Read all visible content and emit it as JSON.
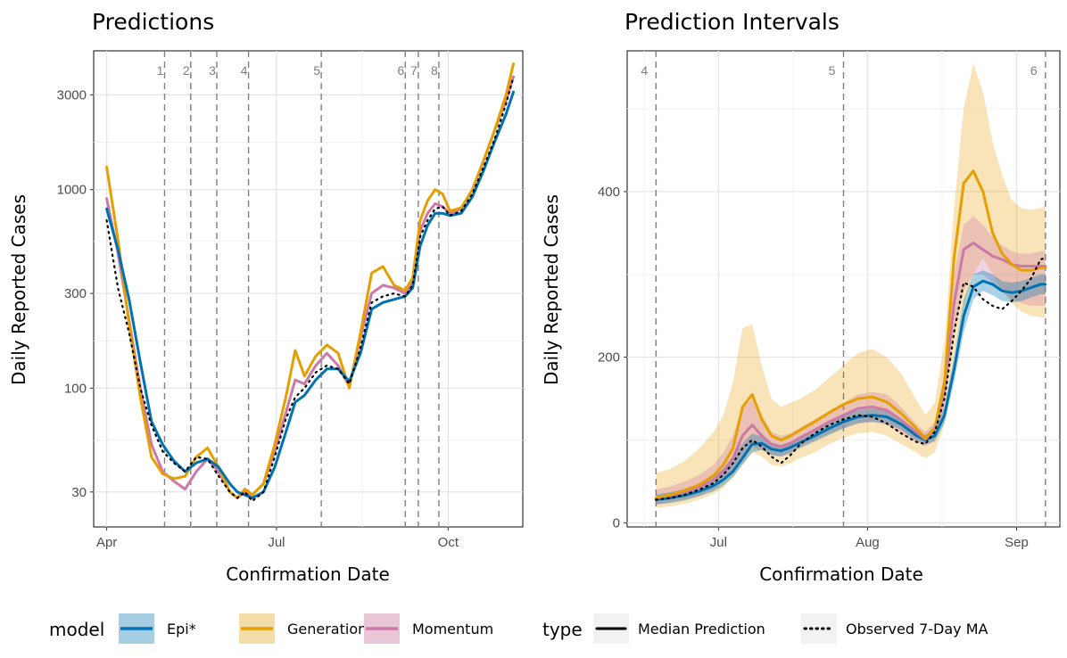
{
  "chart_data": [
    {
      "type": "line",
      "title": "Predictions",
      "xlabel": "Confirmation Date",
      "ylabel": "Daily Reported Cases",
      "y_scale": "log10",
      "ylim": [
        20,
        5000
      ],
      "x_unit": "day of year",
      "xlim": [
        85,
        315
      ],
      "x_ticks": [
        {
          "day": 92,
          "label": "Apr"
        },
        {
          "day": 183,
          "label": "Jul"
        },
        {
          "day": 275,
          "label": "Oct"
        }
      ],
      "y_ticks": [
        {
          "value": 30,
          "label": "30"
        },
        {
          "value": 100,
          "label": "100"
        },
        {
          "value": 300,
          "label": "300"
        },
        {
          "value": 1000,
          "label": "1000"
        },
        {
          "value": 3000,
          "label": "3000"
        }
      ],
      "vlines": [
        {
          "label": "1",
          "day": 123
        },
        {
          "label": "2",
          "day": 137
        },
        {
          "label": "3",
          "day": 151
        },
        {
          "label": "4",
          "day": 168
        },
        {
          "label": "5",
          "day": 207
        },
        {
          "label": "6",
          "day": 252
        },
        {
          "label": "7",
          "day": 259
        },
        {
          "label": "8",
          "day": 270
        }
      ],
      "series": [
        {
          "name": "Momentum",
          "color": "#cc79a7",
          "style": "solid",
          "x": [
            92,
            98,
            104,
            110,
            116,
            122,
            128,
            134,
            140,
            146,
            152,
            158,
            162,
            166,
            170,
            176,
            182,
            188,
            193,
            198,
            204,
            210,
            216,
            222,
            228,
            234,
            240,
            246,
            252,
            256,
            260,
            264,
            268,
            272,
            276,
            282,
            288,
            294,
            300,
            306,
            310
          ],
          "y": [
            900,
            480,
            220,
            100,
            52,
            38,
            34,
            31,
            38,
            44,
            38,
            30,
            28,
            30,
            29,
            33,
            48,
            75,
            110,
            105,
            130,
            150,
            130,
            102,
            180,
            300,
            330,
            320,
            300,
            340,
            620,
            760,
            850,
            820,
            760,
            800,
            1000,
            1400,
            2000,
            2800,
            3700
          ]
        },
        {
          "name": "Generation",
          "color": "#e69f00",
          "style": "solid",
          "x": [
            92,
            98,
            104,
            110,
            116,
            122,
            128,
            134,
            140,
            146,
            152,
            158,
            162,
            166,
            170,
            176,
            182,
            188,
            193,
            198,
            204,
            210,
            216,
            222,
            228,
            234,
            240,
            246,
            252,
            256,
            260,
            264,
            268,
            272,
            276,
            282,
            288,
            294,
            300,
            306,
            310
          ],
          "y": [
            1300,
            560,
            210,
            90,
            45,
            37,
            35,
            36,
            45,
            50,
            40,
            30,
            28,
            31,
            29,
            33,
            52,
            90,
            155,
            115,
            145,
            165,
            150,
            100,
            190,
            380,
            410,
            330,
            310,
            360,
            700,
            880,
            1000,
            950,
            780,
            810,
            1000,
            1400,
            2000,
            3000,
            4300
          ]
        },
        {
          "name": "Epi*",
          "color": "#0072b2",
          "style": "solid",
          "x": [
            92,
            98,
            104,
            110,
            116,
            122,
            128,
            134,
            140,
            146,
            152,
            158,
            162,
            166,
            170,
            176,
            182,
            188,
            193,
            198,
            204,
            210,
            216,
            222,
            228,
            234,
            240,
            246,
            252,
            256,
            260,
            264,
            268,
            272,
            276,
            282,
            288,
            294,
            300,
            306,
            310
          ],
          "y": [
            800,
            500,
            280,
            135,
            68,
            52,
            43,
            38,
            42,
            44,
            40,
            33,
            30,
            29,
            28,
            30,
            40,
            60,
            85,
            92,
            110,
            125,
            125,
            108,
            150,
            250,
            270,
            280,
            290,
            320,
            520,
            660,
            760,
            760,
            740,
            760,
            920,
            1250,
            1750,
            2400,
            3100
          ]
        },
        {
          "name": "Observed 7-Day MA",
          "color": "#000000",
          "style": "dotted",
          "x": [
            92,
            98,
            104,
            110,
            116,
            122,
            128,
            134,
            140,
            146,
            152,
            158,
            162,
            166,
            170,
            176,
            182,
            188,
            193,
            198,
            204,
            210,
            216,
            222,
            228,
            234,
            240,
            246,
            252,
            256,
            260,
            264,
            268,
            272,
            276,
            282,
            288,
            294,
            300,
            306,
            310
          ],
          "y": [
            700,
            320,
            190,
            100,
            65,
            48,
            42,
            38,
            45,
            44,
            36,
            30,
            28,
            30,
            27,
            30,
            45,
            70,
            90,
            100,
            120,
            130,
            125,
            105,
            160,
            270,
            290,
            300,
            290,
            330,
            580,
            700,
            800,
            820,
            740,
            780,
            950,
            1300,
            1800,
            2700,
            3700
          ]
        }
      ]
    },
    {
      "type": "area",
      "title": "Prediction Intervals",
      "xlabel": "Confirmation Date",
      "ylabel": "Daily Reported Cases",
      "ylim": [
        -5,
        570
      ],
      "x_unit": "day of year",
      "xlim": [
        164,
        254
      ],
      "x_ticks": [
        {
          "day": 183,
          "label": "Jul"
        },
        {
          "day": 214,
          "label": "Aug"
        },
        {
          "day": 245,
          "label": "Sep"
        }
      ],
      "y_ticks": [
        {
          "value": 0,
          "label": "0"
        },
        {
          "value": 200,
          "label": "200"
        },
        {
          "value": 400,
          "label": "400"
        }
      ],
      "vlines": [
        {
          "label": "4",
          "day": 170
        },
        {
          "label": "5",
          "day": 209
        },
        {
          "label": "6",
          "day": 251
        }
      ],
      "x": [
        170,
        173,
        176,
        179,
        182,
        184,
        186,
        188,
        190,
        192,
        194,
        196,
        198,
        200,
        203,
        206,
        209,
        212,
        215,
        218,
        221,
        224,
        226,
        228,
        230,
        232,
        234,
        236,
        238,
        240,
        242,
        244,
        246,
        248,
        250,
        251
      ],
      "bands": [
        {
          "name": "Generation",
          "color": "#e69f00",
          "opacity": 0.28,
          "lower": [
            18,
            20,
            23,
            28,
            35,
            42,
            55,
            70,
            85,
            80,
            70,
            68,
            72,
            78,
            85,
            95,
            103,
            108,
            110,
            105,
            95,
            85,
            78,
            85,
            120,
            200,
            260,
            300,
            320,
            300,
            280,
            265,
            255,
            250,
            248,
            248
          ],
          "upper": [
            60,
            65,
            75,
            90,
            110,
            130,
            170,
            235,
            240,
            190,
            150,
            140,
            145,
            150,
            160,
            175,
            190,
            205,
            210,
            200,
            180,
            150,
            130,
            145,
            220,
            380,
            500,
            555,
            520,
            460,
            420,
            390,
            380,
            378,
            380,
            382
          ]
        },
        {
          "name": "Momentum",
          "color": "#cc79a7",
          "opacity": 0.32,
          "lower": [
            22,
            25,
            28,
            33,
            40,
            50,
            62,
            80,
            92,
            88,
            82,
            80,
            85,
            92,
            100,
            108,
            115,
            120,
            122,
            118,
            108,
            98,
            92,
            100,
            140,
            230,
            280,
            300,
            300,
            290,
            280,
            270,
            265,
            262,
            262,
            262
          ],
          "upper": [
            40,
            44,
            50,
            58,
            70,
            85,
            105,
            140,
            150,
            130,
            110,
            105,
            108,
            115,
            125,
            135,
            145,
            155,
            158,
            155,
            140,
            120,
            110,
            122,
            180,
            300,
            360,
            370,
            360,
            345,
            335,
            328,
            325,
            325,
            328,
            328
          ]
        },
        {
          "name": "Epi*",
          "color": "#0072b2",
          "opacity": 0.33,
          "lower": [
            22,
            24,
            27,
            32,
            38,
            45,
            55,
            70,
            85,
            88,
            82,
            80,
            84,
            90,
            98,
            106,
            114,
            120,
            122,
            120,
            112,
            100,
            95,
            98,
            120,
            170,
            230,
            270,
            280,
            275,
            268,
            266,
            268,
            272,
            276,
            276
          ],
          "upper": [
            34,
            37,
            41,
            47,
            56,
            66,
            80,
            96,
            108,
            104,
            96,
            94,
            98,
            104,
            112,
            122,
            130,
            136,
            138,
            136,
            126,
            112,
            106,
            112,
            140,
            200,
            270,
            300,
            305,
            300,
            292,
            290,
            292,
            296,
            300,
            300
          ]
        }
      ],
      "series": [
        {
          "name": "Epi*",
          "color": "#0072b2",
          "style": "solid",
          "y": [
            28,
            30,
            33,
            38,
            45,
            52,
            62,
            78,
            95,
            96,
            89,
            87,
            91,
            97,
            105,
            114,
            122,
            128,
            130,
            128,
            119,
            106,
            100,
            105,
            130,
            185,
            250,
            285,
            292,
            288,
            280,
            278,
            280,
            284,
            288,
            288
          ]
        },
        {
          "name": "Momentum",
          "color": "#cc79a7",
          "style": "solid",
          "y": [
            30,
            33,
            37,
            43,
            52,
            62,
            78,
            105,
            118,
            105,
            95,
            92,
            96,
            103,
            112,
            122,
            130,
            138,
            140,
            136,
            124,
            110,
            101,
            112,
            160,
            265,
            330,
            338,
            330,
            322,
            318,
            312,
            310,
            310,
            310,
            310
          ]
        },
        {
          "name": "Generation",
          "color": "#e69f00",
          "style": "solid",
          "y": [
            30,
            34,
            39,
            46,
            57,
            70,
            90,
            140,
            155,
            125,
            105,
            100,
            105,
            112,
            122,
            133,
            143,
            150,
            152,
            146,
            132,
            115,
            102,
            115,
            170,
            320,
            410,
            425,
            400,
            350,
            325,
            312,
            305,
            305,
            308,
            308
          ]
        },
        {
          "name": "Observed 7-Day MA",
          "color": "#000000",
          "style": "dotted",
          "y": [
            28,
            30,
            34,
            40,
            48,
            58,
            72,
            90,
            100,
            92,
            80,
            72,
            82,
            95,
            108,
            118,
            125,
            130,
            128,
            120,
            108,
            98,
            95,
            110,
            150,
            230,
            290,
            285,
            270,
            262,
            258,
            268,
            280,
            295,
            318,
            320
          ]
        }
      ]
    }
  ],
  "legend": {
    "model_title": "model",
    "model_items": [
      {
        "label": "Epi*",
        "fill": "#a6cde2",
        "line": "#0072b2"
      },
      {
        "label": "Generation",
        "fill": "#f2dca8",
        "line": "#e69f00"
      },
      {
        "label": "Momentum",
        "fill": "#e8c6d8",
        "line": "#cc79a7"
      }
    ],
    "type_title": "type",
    "type_items": [
      {
        "label": "Median Prediction",
        "dash": "solid"
      },
      {
        "label": "Observed 7-Day MA",
        "dash": "dotted"
      }
    ]
  }
}
